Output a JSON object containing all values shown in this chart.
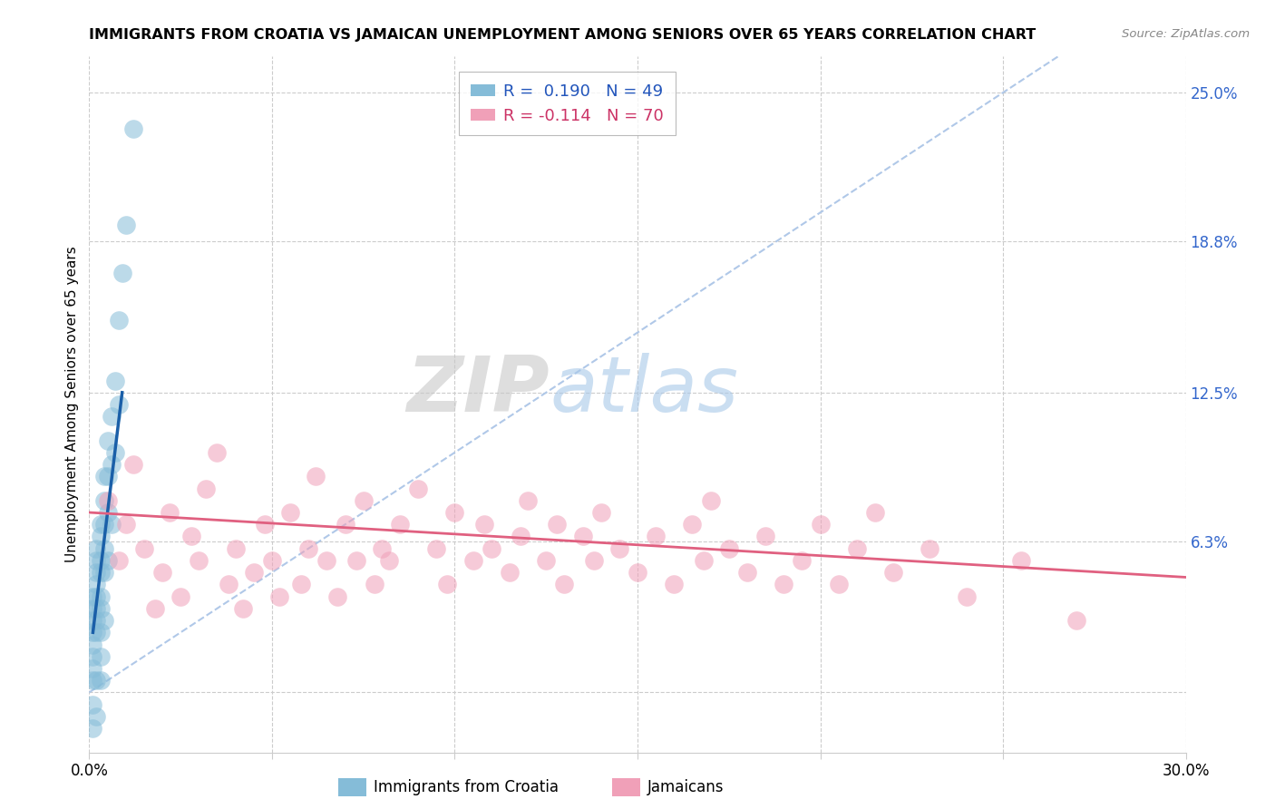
{
  "title": "IMMIGRANTS FROM CROATIA VS JAMAICAN UNEMPLOYMENT AMONG SENIORS OVER 65 YEARS CORRELATION CHART",
  "source": "Source: ZipAtlas.com",
  "ylabel": "Unemployment Among Seniors over 65 years",
  "xlim": [
    0.0,
    0.3
  ],
  "ylim": [
    -0.025,
    0.265
  ],
  "xticks": [
    0.0,
    0.05,
    0.1,
    0.15,
    0.2,
    0.25,
    0.3
  ],
  "xticklabels": [
    "0.0%",
    "",
    "",
    "",
    "",
    "",
    "30.0%"
  ],
  "right_ytick_vals": [
    0.0,
    0.063,
    0.125,
    0.188,
    0.25
  ],
  "right_ytick_labels": [
    "",
    "6.3%",
    "12.5%",
    "18.8%",
    "25.0%"
  ],
  "legend_line1": "R =  0.190   N = 49",
  "legend_line2": "R = -0.114   N = 70",
  "blue_color": "#85bcd8",
  "pink_color": "#f0a0b8",
  "blue_line_color": "#1a5fa8",
  "pink_line_color": "#e06080",
  "dashed_line_color": "#b0c8e8",
  "watermark_zip": "ZIP",
  "watermark_atlas": "atlas",
  "blue_dots_x": [
    0.001,
    0.001,
    0.001,
    0.001,
    0.001,
    0.001,
    0.001,
    0.001,
    0.001,
    0.001,
    0.002,
    0.002,
    0.002,
    0.002,
    0.002,
    0.002,
    0.002,
    0.002,
    0.002,
    0.002,
    0.003,
    0.003,
    0.003,
    0.003,
    0.003,
    0.003,
    0.003,
    0.003,
    0.003,
    0.004,
    0.004,
    0.004,
    0.004,
    0.004,
    0.004,
    0.005,
    0.005,
    0.005,
    0.005,
    0.006,
    0.006,
    0.006,
    0.007,
    0.007,
    0.008,
    0.008,
    0.009,
    0.01,
    0.012
  ],
  "blue_dots_y": [
    0.04,
    0.035,
    0.03,
    0.025,
    0.02,
    0.015,
    0.01,
    0.005,
    -0.005,
    -0.015,
    0.06,
    0.055,
    0.05,
    0.045,
    0.04,
    0.035,
    0.03,
    0.025,
    0.005,
    -0.01,
    0.07,
    0.065,
    0.055,
    0.05,
    0.04,
    0.035,
    0.025,
    0.015,
    0.005,
    0.09,
    0.08,
    0.07,
    0.06,
    0.05,
    0.03,
    0.105,
    0.09,
    0.075,
    0.055,
    0.115,
    0.095,
    0.07,
    0.13,
    0.1,
    0.155,
    0.12,
    0.175,
    0.195,
    0.235
  ],
  "pink_dots_x": [
    0.005,
    0.008,
    0.01,
    0.012,
    0.015,
    0.018,
    0.02,
    0.022,
    0.025,
    0.028,
    0.03,
    0.032,
    0.035,
    0.038,
    0.04,
    0.042,
    0.045,
    0.048,
    0.05,
    0.052,
    0.055,
    0.058,
    0.06,
    0.062,
    0.065,
    0.068,
    0.07,
    0.073,
    0.075,
    0.078,
    0.08,
    0.082,
    0.085,
    0.09,
    0.095,
    0.098,
    0.1,
    0.105,
    0.108,
    0.11,
    0.115,
    0.118,
    0.12,
    0.125,
    0.128,
    0.13,
    0.135,
    0.138,
    0.14,
    0.145,
    0.15,
    0.155,
    0.16,
    0.165,
    0.168,
    0.17,
    0.175,
    0.18,
    0.185,
    0.19,
    0.195,
    0.2,
    0.205,
    0.21,
    0.215,
    0.22,
    0.23,
    0.24,
    0.255,
    0.27
  ],
  "pink_dots_y": [
    0.08,
    0.055,
    0.07,
    0.095,
    0.06,
    0.035,
    0.05,
    0.075,
    0.04,
    0.065,
    0.055,
    0.085,
    0.1,
    0.045,
    0.06,
    0.035,
    0.05,
    0.07,
    0.055,
    0.04,
    0.075,
    0.045,
    0.06,
    0.09,
    0.055,
    0.04,
    0.07,
    0.055,
    0.08,
    0.045,
    0.06,
    0.055,
    0.07,
    0.085,
    0.06,
    0.045,
    0.075,
    0.055,
    0.07,
    0.06,
    0.05,
    0.065,
    0.08,
    0.055,
    0.07,
    0.045,
    0.065,
    0.055,
    0.075,
    0.06,
    0.05,
    0.065,
    0.045,
    0.07,
    0.055,
    0.08,
    0.06,
    0.05,
    0.065,
    0.045,
    0.055,
    0.07,
    0.045,
    0.06,
    0.075,
    0.05,
    0.06,
    0.04,
    0.055,
    0.03
  ],
  "blue_line_x": [
    0.001,
    0.009
  ],
  "blue_line_y": [
    0.025,
    0.125
  ],
  "pink_line_x_start": 0.0,
  "pink_line_x_end": 0.3,
  "pink_line_y_start": 0.075,
  "pink_line_y_end": 0.048
}
